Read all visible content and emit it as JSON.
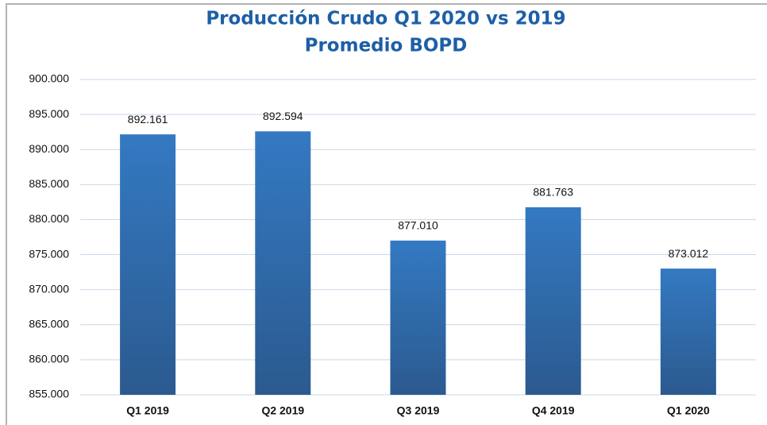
{
  "chart_data": {
    "type": "bar",
    "title": "Producción Crudo Q1 2020 vs 2019",
    "subtitle": "Promedio BOPD",
    "categories": [
      "Q1 2019",
      "Q2 2019",
      "Q3 2019",
      "Q4 2019",
      "Q1 2020"
    ],
    "values": [
      892161,
      892594,
      877010,
      881763,
      873012
    ],
    "value_labels": [
      "892.161",
      "892.594",
      "877.010",
      "881.763",
      "873.012"
    ],
    "color": "#3479c2",
    "ylim": [
      855000,
      900000
    ],
    "yticks": [
      {
        "value": 855000,
        "label": "855.000"
      },
      {
        "value": 860000,
        "label": "860.000"
      },
      {
        "value": 865000,
        "label": "865.000"
      },
      {
        "value": 870000,
        "label": "870.000"
      },
      {
        "value": 875000,
        "label": "875.000"
      },
      {
        "value": 880000,
        "label": "880.000"
      },
      {
        "value": 885000,
        "label": "885.000"
      },
      {
        "value": 890000,
        "label": "890.000"
      },
      {
        "value": 895000,
        "label": "895.000"
      },
      {
        "value": 900000,
        "label": "900.000"
      }
    ],
    "grid": true
  }
}
